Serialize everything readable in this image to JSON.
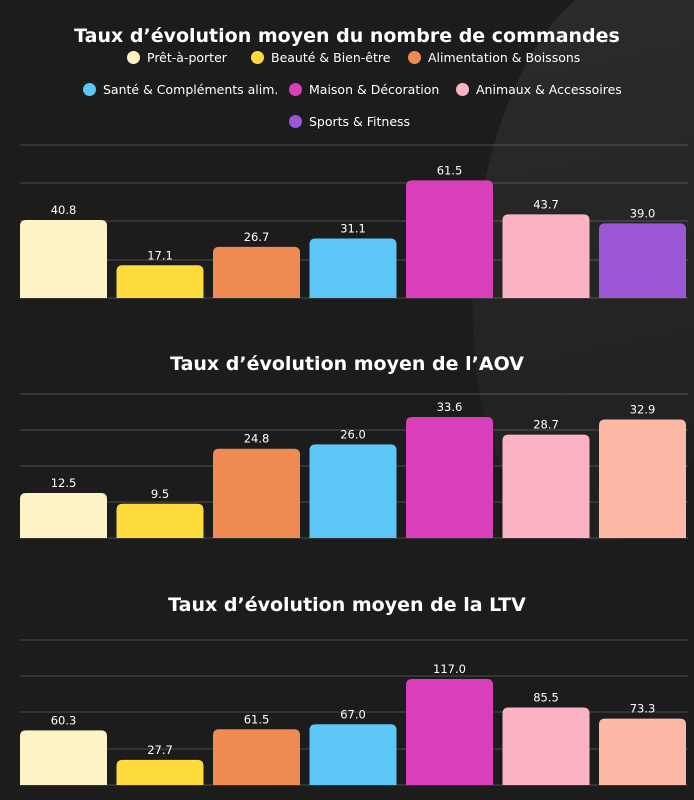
{
  "legend": [
    {
      "name": "Prêt-à-porter",
      "color": "#fdf3c4"
    },
    {
      "name": "Beauté & Bien-être",
      "color": "#fddb3a"
    },
    {
      "name": "Alimentation & Boissons",
      "color": "#ee8a52"
    },
    {
      "name": "Santé & Compléments alim.",
      "color": "#5cc6f7"
    },
    {
      "name": "Maison & Décoration",
      "color": "#d93fb8"
    },
    {
      "name": "Animaux & Accessoires",
      "color": "#fcb3c4"
    },
    {
      "name": "Sports & Fitness",
      "color": "#9b57d6"
    }
  ],
  "chart_data": [
    {
      "type": "bar",
      "title": "Taux d’évolution moyen du nombre de commandes",
      "categories": [
        "Prêt-à-porter",
        "Beauté & Bien-être",
        "Alimentation & Boissons",
        "Santé & Compléments alim.",
        "Maison & Décoration",
        "Animaux & Accessoires",
        "Sports & Fitness"
      ],
      "values": [
        40.8,
        17.1,
        26.7,
        31.1,
        61.5,
        43.7,
        39.0
      ],
      "value_labels": [
        "40.8",
        "17.1",
        "26.7",
        "31.1",
        "61.5",
        "43.7",
        "39.0"
      ],
      "colors": [
        "#fdf3c4",
        "#fddb3a",
        "#ee8a52",
        "#5cc6f7",
        "#d93fb8",
        "#fcb3c4",
        "#9b57d6"
      ],
      "ylim": [
        0,
        80
      ],
      "grid": true
    },
    {
      "type": "bar",
      "title": "Taux d’évolution moyen de l’AOV",
      "categories": [
        "Prêt-à-porter",
        "Beauté & Bien-être",
        "Alimentation & Boissons",
        "Santé & Compléments alim.",
        "Maison & Décoration",
        "Animaux & Accessoires",
        "Sports & Fitness"
      ],
      "values": [
        12.5,
        9.5,
        24.8,
        26.0,
        33.6,
        28.7,
        32.9
      ],
      "value_labels": [
        "12.5",
        "9.5",
        "24.8",
        "26.0",
        "33.6",
        "28.7",
        "32.9"
      ],
      "colors": [
        "#fdf3c4",
        "#fddb3a",
        "#ee8a52",
        "#5cc6f7",
        "#d93fb8",
        "#fcb3c4",
        "#fdb9a6"
      ],
      "ylim": [
        0,
        40
      ],
      "grid": true
    },
    {
      "type": "bar",
      "title": "Taux d’évolution moyen de la LTV",
      "categories": [
        "Prêt-à-porter",
        "Beauté & Bien-être",
        "Alimentation & Boissons",
        "Santé & Compléments alim.",
        "Maison & Décoration",
        "Animaux & Accessoires",
        "Sports & Fitness"
      ],
      "values": [
        60.3,
        27.7,
        61.5,
        67.0,
        117.0,
        85.5,
        73.3
      ],
      "value_labels": [
        "60.3",
        "27.7",
        "61.5",
        "67.0",
        "117.0",
        "85.5",
        "73.3"
      ],
      "colors": [
        "#fdf3c4",
        "#fddb3a",
        "#ee8a52",
        "#5cc6f7",
        "#d93fb8",
        "#fcb3c4",
        "#fdb9a6"
      ],
      "ylim": [
        0,
        160
      ],
      "grid": true
    }
  ]
}
